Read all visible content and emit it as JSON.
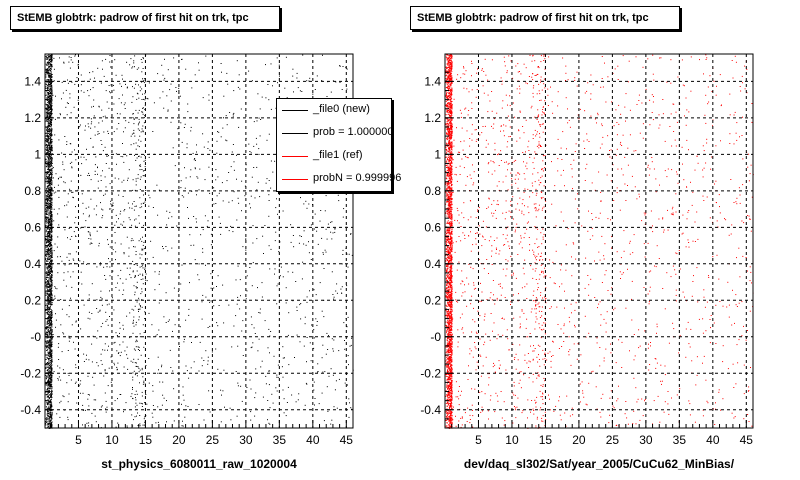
{
  "panels": [
    {
      "id": "left",
      "title": "StEMB globtrk: padrow of first hit on trk, tpc",
      "xlabel": "st_physics_6080011_raw_1020004",
      "point_color": "#000000"
    },
    {
      "id": "right",
      "title": "StEMB globtrk: padrow of first hit on trk, tpc",
      "xlabel": "dev/daq_sl302/Sat/year_2005/CuCu62_MinBias/",
      "point_color": "#ff0000"
    }
  ],
  "legend": {
    "entries": [
      {
        "label": "_file0 (new)",
        "color": "#000000"
      },
      {
        "label": "prob = 1.000000",
        "color": "#000000"
      },
      {
        "label": "_file1 (ref)",
        "color": "#ff0000"
      },
      {
        "label": "probN = 0.999996",
        "color": "#ff0000"
      }
    ]
  },
  "chart_data": [
    {
      "type": "scatter",
      "title": "StEMB globtrk: padrow of first hit on trk, tpc",
      "xlabel": "st_physics_6080011_raw_1020004",
      "ylabel": "",
      "xlim": [
        0,
        46
      ],
      "ylim": [
        -0.5,
        1.55
      ],
      "x_ticks": [
        5,
        10,
        15,
        20,
        25,
        30,
        35,
        40,
        45
      ],
      "y_ticks": [
        -0.4,
        -0.2,
        0,
        0.2,
        0.4,
        0.6,
        0.8,
        1,
        1.2,
        1.4
      ],
      "y_tick_labels": [
        "-0.4",
        "-0.2",
        "-0",
        "0.2",
        "0.4",
        "0.6",
        "0.8",
        "1",
        "1.2",
        "1.4"
      ],
      "grid": true,
      "point_color": "#000000",
      "density_profile": [
        {
          "x_range": [
            0,
            1
          ],
          "relative_density": 1.0
        },
        {
          "x_range": [
            1,
            13
          ],
          "relative_density": 0.12
        },
        {
          "x_range": [
            13,
            15
          ],
          "relative_density": 0.35
        },
        {
          "x_range": [
            15,
            46
          ],
          "relative_density": 0.06
        }
      ]
    },
    {
      "type": "scatter",
      "title": "StEMB globtrk: padrow of first hit on trk, tpc",
      "xlabel": "dev/daq_sl302/Sat/year_2005/CuCu62_MinBias/",
      "ylabel": "",
      "xlim": [
        0,
        46
      ],
      "ylim": [
        -0.5,
        1.55
      ],
      "x_ticks": [
        5,
        10,
        15,
        20,
        25,
        30,
        35,
        40,
        45
      ],
      "y_ticks": [
        -0.4,
        -0.2,
        0,
        0.2,
        0.4,
        0.6,
        0.8,
        1,
        1.2,
        1.4
      ],
      "y_tick_labels": [
        "-0.4",
        "-0.2",
        "-0",
        "0.2",
        "0.4",
        "0.6",
        "0.8",
        "1",
        "1.2",
        "1.4"
      ],
      "grid": true,
      "point_color": "#ff0000",
      "density_profile": [
        {
          "x_range": [
            0,
            1
          ],
          "relative_density": 1.0
        },
        {
          "x_range": [
            1,
            13
          ],
          "relative_density": 0.12
        },
        {
          "x_range": [
            13,
            15
          ],
          "relative_density": 0.35
        },
        {
          "x_range": [
            15,
            46
          ],
          "relative_density": 0.06
        }
      ]
    }
  ]
}
